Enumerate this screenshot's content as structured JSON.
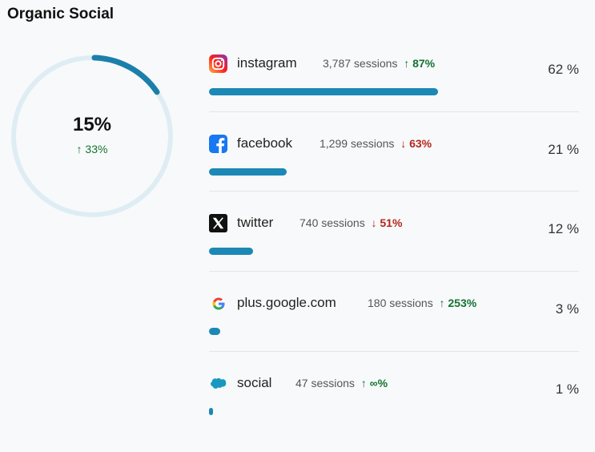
{
  "title": "Organic Social",
  "summary": {
    "value": "15%",
    "fraction": 0.15,
    "delta": "↑ 33%",
    "ring_color": "#1b7fab",
    "track_color": "#deedf4"
  },
  "sources": [
    {
      "name": "instagram",
      "icon": "instagram-icon",
      "sessions": "3,787 sessions",
      "delta": "↑ 87%",
      "trend": "up",
      "share": "62 %",
      "share_value": 62
    },
    {
      "name": "facebook",
      "icon": "facebook-icon",
      "sessions": "1,299 sessions",
      "delta": "↓ 63%",
      "trend": "down",
      "share": "21 %",
      "share_value": 21
    },
    {
      "name": "twitter",
      "icon": "x-twitter-icon",
      "sessions": "740 sessions",
      "delta": "↓ 51%",
      "trend": "down",
      "share": "12 %",
      "share_value": 12
    },
    {
      "name": "plus.google.com",
      "icon": "google-icon",
      "sessions": "180 sessions",
      "delta": "↑ 253%",
      "trend": "up",
      "share": "3 %",
      "share_value": 3
    },
    {
      "name": "social",
      "icon": "salesforce-cloud-icon",
      "sessions": "47 sessions",
      "delta": "↑ ∞%",
      "trend": "up",
      "share": "1 %",
      "share_value": 1
    }
  ]
}
